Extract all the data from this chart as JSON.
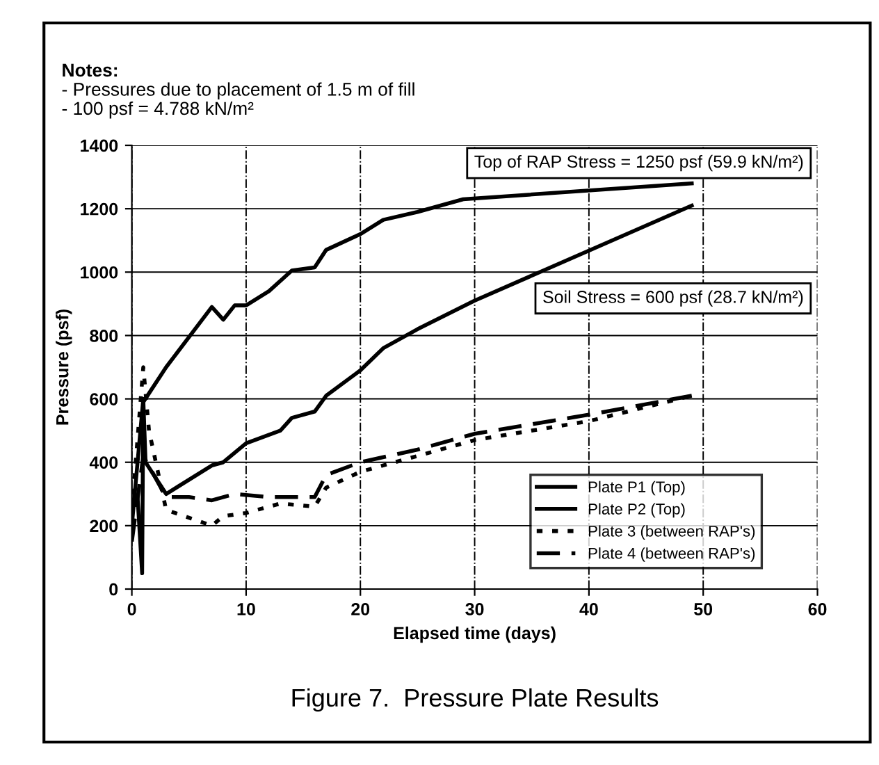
{
  "chart_data": {
    "type": "line",
    "title": "Figure 7.  Pressure Plate Results",
    "xlabel": "Elapsed time (days)",
    "ylabel": "Pressure (psf)",
    "annotations": [
      "Notes:",
      "- Pressures due to placement of 1.5 m of fill",
      "- 100 psf = 4.788 kN/m²",
      "Top of RAP Stress = 1250 psf (59.9 kN/m²)",
      "Soil Stress = 600 psf (28.7 kN/m²)"
    ],
    "xlim": [
      0,
      60
    ],
    "xticks": [
      0,
      10,
      20,
      30,
      40,
      50,
      60
    ],
    "ylim": [
      0,
      1400
    ],
    "yticks": [
      0,
      200,
      400,
      600,
      800,
      1000,
      1200,
      1400
    ],
    "grid": true,
    "legend": "bottom right",
    "series": [
      {
        "name": "Plate P1 (Top)",
        "color": "#000000",
        "line_style": "solid",
        "x": [
          0,
          0.5,
          0.9,
          1,
          3,
          7,
          8,
          9,
          10,
          12,
          14,
          16,
          17,
          20,
          22,
          25,
          29,
          49
        ],
        "values": [
          280,
          290,
          50,
          590,
          700,
          890,
          850,
          895,
          895,
          940,
          1005,
          1015,
          1070,
          1120,
          1165,
          1190,
          1230,
          1280
        ]
      },
      {
        "name": "Plate P2 (Top)",
        "color": "#000000",
        "line_style": "solid",
        "x": [
          0,
          1,
          1.2,
          3,
          7,
          8,
          10,
          13,
          14,
          16,
          17,
          20,
          22,
          25,
          30,
          49
        ],
        "values": [
          200,
          600,
          400,
          300,
          390,
          400,
          460,
          500,
          540,
          560,
          610,
          690,
          760,
          820,
          910,
          1210
        ]
      },
      {
        "name": "Plate 3 (between RAP's)",
        "color": "#000000",
        "line_style": "dotted",
        "x": [
          0,
          1,
          1.5,
          3,
          7,
          8,
          10,
          13,
          16,
          17,
          20,
          25,
          30,
          40,
          49
        ],
        "values": [
          250,
          700,
          500,
          250,
          200,
          230,
          240,
          270,
          260,
          320,
          370,
          420,
          470,
          530,
          610
        ]
      },
      {
        "name": "Plate 4 (between RAP's)",
        "color": "#000000",
        "line_style": "dashed",
        "x": [
          0,
          1,
          3,
          5,
          7,
          9,
          12,
          16,
          17,
          20,
          25,
          30,
          40,
          49
        ],
        "values": [
          150,
          420,
          290,
          290,
          280,
          300,
          290,
          290,
          360,
          400,
          440,
          490,
          550,
          610
        ]
      }
    ]
  }
}
